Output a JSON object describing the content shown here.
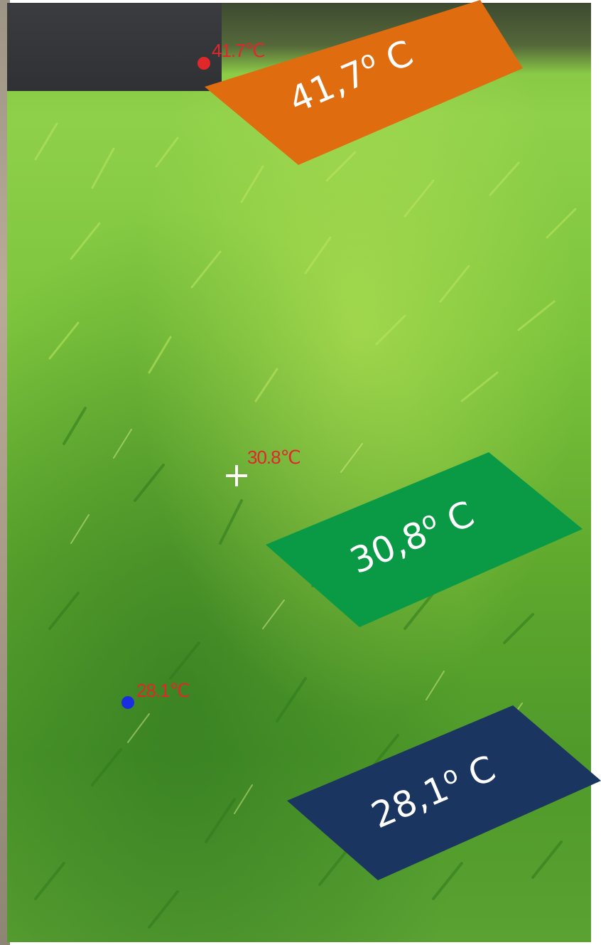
{
  "markers": {
    "hot": {
      "reading": "41.7℃",
      "dot_color": "#e0282a"
    },
    "center": {
      "reading": "30.8℃"
    },
    "cold": {
      "reading": "28.1℃",
      "dot_color": "#1a2ee0"
    }
  },
  "badges": [
    {
      "value": "41,7",
      "degree": "o",
      "unit": " C",
      "color": "#e06c10"
    },
    {
      "value": "30,8",
      "degree": "o",
      "unit": " C",
      "color": "#0a9a45"
    },
    {
      "value": "28,1",
      "degree": "o",
      "unit": " C",
      "color": "#1a3660"
    }
  ]
}
